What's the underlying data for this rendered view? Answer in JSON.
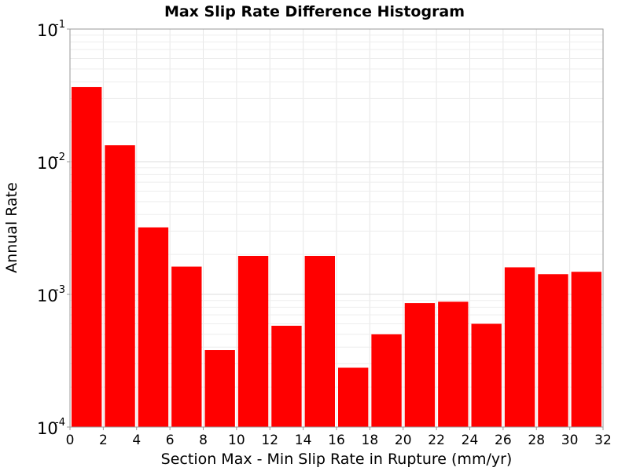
{
  "chart_data": {
    "type": "bar",
    "title": "Max Slip Rate Difference Histogram",
    "xlabel": "Section Max - Min Slip Rate in Rupture (mm/yr)",
    "ylabel": "Annual Rate",
    "xlim": [
      0,
      32
    ],
    "ylim": [
      0.0001,
      0.1
    ],
    "yscale": "log",
    "grid": true,
    "xticks": [
      "0",
      "2",
      "4",
      "6",
      "8",
      "10",
      "12",
      "14",
      "16",
      "18",
      "20",
      "22",
      "24",
      "26",
      "28",
      "30",
      "32"
    ],
    "yticks": [
      {
        "base": "10",
        "exp": "-1"
      },
      {
        "base": "10",
        "exp": "-2"
      },
      {
        "base": "10",
        "exp": "-3"
      },
      {
        "base": "10",
        "exp": "-4"
      }
    ],
    "bar_color": "#ff0000",
    "bin_width": 2,
    "bins": [
      {
        "x_start": 0,
        "x_end": 2,
        "value": 0.0365
      },
      {
        "x_start": 2,
        "x_end": 4,
        "value": 0.0133
      },
      {
        "x_start": 4,
        "x_end": 6,
        "value": 0.0032
      },
      {
        "x_start": 6,
        "x_end": 8,
        "value": 0.00162
      },
      {
        "x_start": 8,
        "x_end": 10,
        "value": 0.00038
      },
      {
        "x_start": 10,
        "x_end": 12,
        "value": 0.00195
      },
      {
        "x_start": 12,
        "x_end": 14,
        "value": 0.00058
      },
      {
        "x_start": 14,
        "x_end": 16,
        "value": 0.00195
      },
      {
        "x_start": 16,
        "x_end": 18,
        "value": 0.00028
      },
      {
        "x_start": 18,
        "x_end": 20,
        "value": 0.0005
      },
      {
        "x_start": 20,
        "x_end": 22,
        "value": 0.00086
      },
      {
        "x_start": 22,
        "x_end": 24,
        "value": 0.00088
      },
      {
        "x_start": 24,
        "x_end": 26,
        "value": 0.0006
      },
      {
        "x_start": 26,
        "x_end": 28,
        "value": 0.0016
      },
      {
        "x_start": 28,
        "x_end": 30,
        "value": 0.00142
      },
      {
        "x_start": 30,
        "x_end": 32,
        "value": 0.00148
      }
    ]
  }
}
